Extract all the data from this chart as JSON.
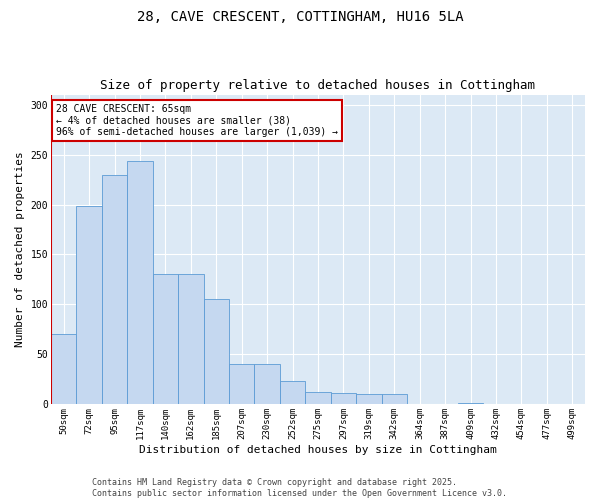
{
  "title_line1": "28, CAVE CRESCENT, COTTINGHAM, HU16 5LA",
  "title_line2": "Size of property relative to detached houses in Cottingham",
  "xlabel": "Distribution of detached houses by size in Cottingham",
  "ylabel": "Number of detached properties",
  "bar_labels": [
    "50sqm",
    "72sqm",
    "95sqm",
    "117sqm",
    "140sqm",
    "162sqm",
    "185sqm",
    "207sqm",
    "230sqm",
    "252sqm",
    "275sqm",
    "297sqm",
    "319sqm",
    "342sqm",
    "364sqm",
    "387sqm",
    "409sqm",
    "432sqm",
    "454sqm",
    "477sqm",
    "499sqm"
  ],
  "bar_values": [
    70,
    199,
    230,
    244,
    130,
    130,
    105,
    40,
    40,
    23,
    12,
    11,
    10,
    10,
    0,
    0,
    1,
    0,
    0,
    0,
    0
  ],
  "bar_color": "#c5d8f0",
  "bar_edge_color": "#5b9bd5",
  "bg_color": "#dce9f5",
  "annotation_text": "28 CAVE CRESCENT: 65sqm\n← 4% of detached houses are smaller (38)\n96% of semi-detached houses are larger (1,039) →",
  "annotation_box_color": "#ffffff",
  "annotation_border_color": "#cc0000",
  "marker_line_color": "#cc0000",
  "ylim": [
    0,
    310
  ],
  "yticks": [
    0,
    50,
    100,
    150,
    200,
    250,
    300
  ],
  "footer_line1": "Contains HM Land Registry data © Crown copyright and database right 2025.",
  "footer_line2": "Contains public sector information licensed under the Open Government Licence v3.0.",
  "title_fontsize": 10,
  "subtitle_fontsize": 9,
  "tick_fontsize": 6.5,
  "label_fontsize": 8,
  "footer_fontsize": 6,
  "grid_color": "#ffffff",
  "spine_color": "#aaaaaa"
}
